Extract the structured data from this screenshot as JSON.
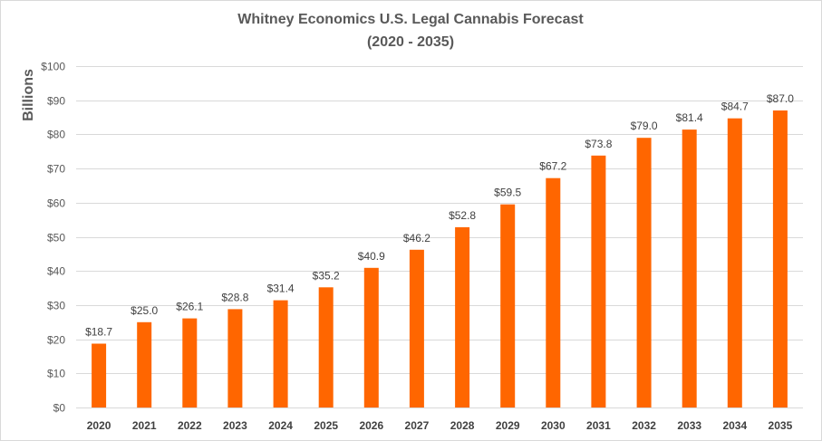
{
  "chart_data": {
    "type": "bar",
    "title": "Whitney Economics U.S. Legal Cannabis Forecast",
    "subtitle": "(2020 - 2035)",
    "xlabel": "",
    "ylabel": "Billions",
    "ylim": [
      0,
      100
    ],
    "ytick_step": 10,
    "ytick_labels": [
      "$0",
      "$10",
      "$20",
      "$30",
      "$40",
      "$50",
      "$60",
      "$70",
      "$80",
      "$90",
      "$100"
    ],
    "categories": [
      "2020",
      "2021",
      "2022",
      "2023",
      "2024",
      "2025",
      "2026",
      "2027",
      "2028",
      "2029",
      "2030",
      "2031",
      "2032",
      "2033",
      "2034",
      "2035"
    ],
    "values": [
      18.7,
      25.0,
      26.1,
      28.8,
      31.4,
      35.2,
      40.9,
      46.2,
      52.8,
      59.5,
      67.2,
      73.8,
      79.0,
      81.4,
      84.7,
      87.0
    ],
    "data_labels": [
      "$18.7",
      "$25.0",
      "$26.1",
      "$28.8",
      "$31.4",
      "$35.2",
      "$40.9",
      "$46.2",
      "$52.8",
      "$59.5",
      "$67.2",
      "$73.8",
      "$79.0",
      "$81.4",
      "$84.7",
      "$87.0"
    ],
    "bar_color": "#ff6600",
    "grid": true,
    "legend": "none"
  }
}
